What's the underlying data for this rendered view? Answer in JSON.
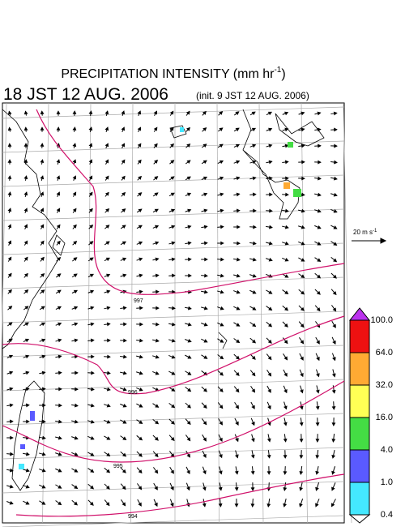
{
  "header": {
    "title": {
      "text": "PRECIPITATION INTENSITY (mm hr",
      "sup": "-1",
      "end": ")"
    },
    "valid_time": "18 JST 12 AUG. 2006",
    "init_time": "(init. 9 JST 12 AUG. 2006)"
  },
  "reference_vector": {
    "text": "20 m s",
    "sup": "-1"
  },
  "colorbar": {
    "colors": [
      "#44e8ff",
      "#5a5aff",
      "#44dd44",
      "#ffff55",
      "#ffaa33",
      "#ee1111",
      "#bb33ee"
    ],
    "labels": [
      "0.4",
      "1.0",
      "4.0",
      "16.0",
      "32.0",
      "64.0",
      "100.0"
    ]
  },
  "contour_labels": [
    "997",
    "996",
    "995",
    "994"
  ]
}
